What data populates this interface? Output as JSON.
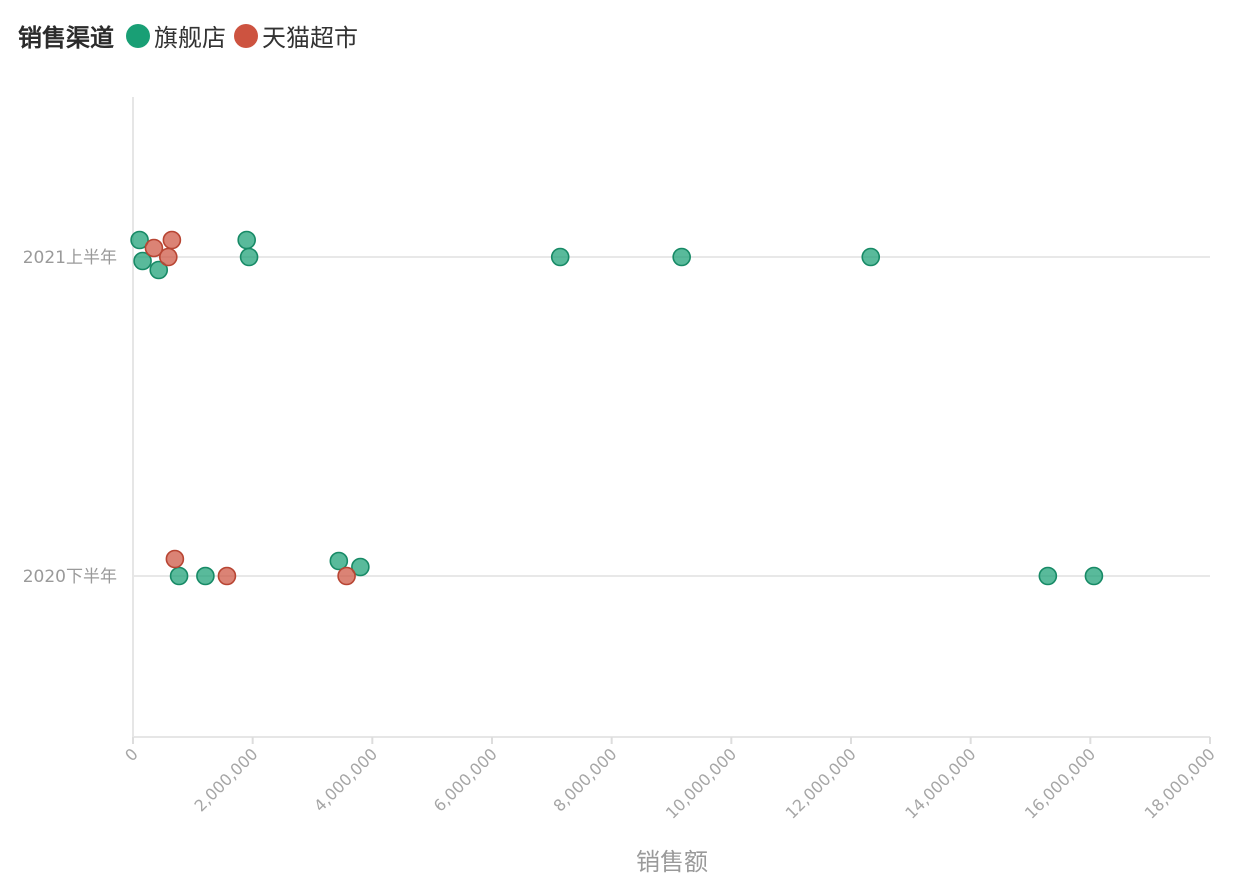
{
  "legend": {
    "title": "销售渠道",
    "items": [
      {
        "label": "旗舰店",
        "color": "#199f75"
      },
      {
        "label": "天猫超市",
        "color": "#cd5340"
      }
    ]
  },
  "chart_data": {
    "type": "scatter",
    "title": "",
    "xlabel": "销售额",
    "ylabel": "",
    "xlim": [
      0,
      18000000
    ],
    "x_ticks": [
      {
        "value": 0,
        "label": "0"
      },
      {
        "value": 2000000,
        "label": "2,000,000"
      },
      {
        "value": 4000000,
        "label": "4,000,000"
      },
      {
        "value": 6000000,
        "label": "6,000,000"
      },
      {
        "value": 8000000,
        "label": "8,000,000"
      },
      {
        "value": 10000000,
        "label": "10,000,000"
      },
      {
        "value": 12000000,
        "label": "12,000,000"
      },
      {
        "value": 14000000,
        "label": "14,000,000"
      },
      {
        "value": 16000000,
        "label": "16,000,000"
      },
      {
        "value": 18000000,
        "label": "18,000,000"
      }
    ],
    "categories": [
      "2021上半年",
      "2020下半年"
    ],
    "grid": true,
    "legend_position": "top-left",
    "series": [
      {
        "name": "旗舰店",
        "color": "#199f75",
        "points": [
          {
            "x": 110000,
            "category": "2021上半年"
          },
          {
            "x": 160000,
            "category": "2021上半年"
          },
          {
            "x": 430000,
            "category": "2021上半年"
          },
          {
            "x": 1900000,
            "category": "2021上半年"
          },
          {
            "x": 1940000,
            "category": "2021上半年"
          },
          {
            "x": 7140000,
            "category": "2021上半年"
          },
          {
            "x": 9170000,
            "category": "2021上半年"
          },
          {
            "x": 12330000,
            "category": "2021上半年"
          },
          {
            "x": 770000,
            "category": "2020下半年"
          },
          {
            "x": 1210000,
            "category": "2020下半年"
          },
          {
            "x": 3440000,
            "category": "2020下半年"
          },
          {
            "x": 3800000,
            "category": "2020下半年"
          },
          {
            "x": 15290000,
            "category": "2020下半年"
          },
          {
            "x": 16060000,
            "category": "2020下半年"
          }
        ]
      },
      {
        "name": "天猫超市",
        "color": "#cd5340",
        "points": [
          {
            "x": 350000,
            "category": "2021上半年"
          },
          {
            "x": 590000,
            "category": "2021上半年"
          },
          {
            "x": 650000,
            "category": "2021上半年"
          },
          {
            "x": 700000,
            "category": "2020下半年"
          },
          {
            "x": 1570000,
            "category": "2020下半年"
          },
          {
            "x": 3570000,
            "category": "2020下半年"
          }
        ]
      }
    ]
  }
}
